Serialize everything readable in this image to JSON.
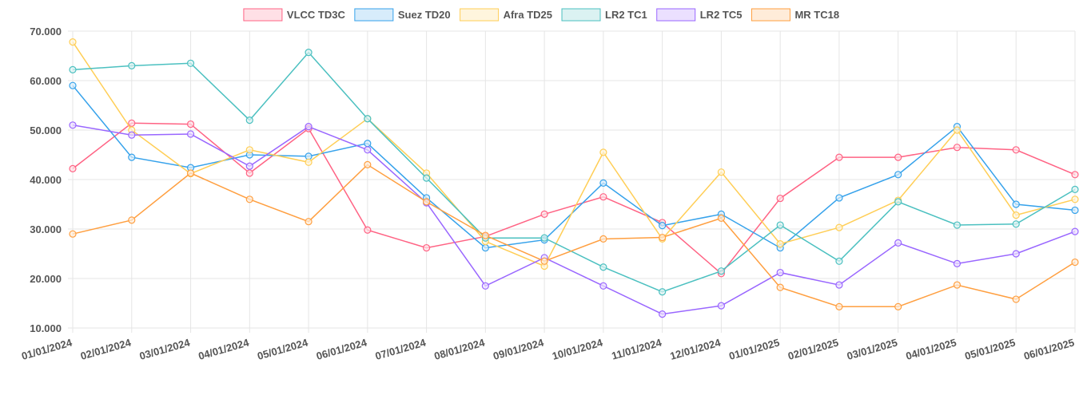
{
  "chart_data": {
    "type": "line",
    "categories": [
      "01/01/2024",
      "02/01/2024",
      "03/01/2024",
      "04/01/2024",
      "05/01/2024",
      "06/01/2024",
      "07/01/2024",
      "08/01/2024",
      "09/01/2024",
      "10/01/2024",
      "11/01/2024",
      "12/01/2024",
      "01/01/2025",
      "02/01/2025",
      "03/01/2025",
      "04/01/2025",
      "05/01/2025",
      "06/01/2025"
    ],
    "ylim": [
      10000,
      70000
    ],
    "yticks": [
      {
        "value": 10000,
        "label": "10.000"
      },
      {
        "value": 20000,
        "label": "20.000"
      },
      {
        "value": 30000,
        "label": "30.000"
      },
      {
        "value": 40000,
        "label": "40.000"
      },
      {
        "value": 50000,
        "label": "50.000"
      },
      {
        "value": 60000,
        "label": "60.000"
      },
      {
        "value": 70000,
        "label": "70.000"
      }
    ],
    "grid": true,
    "legend_position": "top",
    "series": [
      {
        "name": "VLCC TD3C",
        "color": "#ff6384",
        "fill": "#ffe0e6",
        "values": [
          42200,
          51400,
          51200,
          41300,
          50300,
          29800,
          26200,
          28500,
          33000,
          36500,
          31300,
          21000,
          36200,
          44500,
          44500,
          46500,
          46000,
          41000
        ]
      },
      {
        "name": "Suez TD20",
        "color": "#36a2eb",
        "fill": "#d7ecfb",
        "values": [
          59000,
          44500,
          42400,
          45000,
          44700,
          47300,
          36300,
          26200,
          27800,
          39300,
          30700,
          33000,
          26200,
          36300,
          41000,
          50700,
          35000,
          33800
        ]
      },
      {
        "name": "Afra TD25",
        "color": "#ffce56",
        "fill": "#fff5dd",
        "values": [
          67800,
          50000,
          41200,
          46000,
          43500,
          52300,
          41300,
          27500,
          22500,
          45500,
          28000,
          41500,
          27000,
          30300,
          35800,
          50000,
          32800,
          36000
        ]
      },
      {
        "name": "LR2 TC1",
        "color": "#4bc0c0",
        "fill": "#dbf2f2",
        "values": [
          62200,
          63000,
          63500,
          52000,
          65700,
          52300,
          40300,
          28200,
          28200,
          22300,
          17300,
          21500,
          30800,
          23500,
          35500,
          30800,
          31000,
          38000
        ]
      },
      {
        "name": "LR2 TC5",
        "color": "#9966ff",
        "fill": "#ebe0ff",
        "values": [
          51000,
          49000,
          49200,
          42700,
          50700,
          46000,
          35300,
          18500,
          24200,
          18500,
          12800,
          14500,
          21200,
          18700,
          27200,
          23000,
          25000,
          29500
        ]
      },
      {
        "name": "MR TC18",
        "color": "#ff9f40",
        "fill": "#ffecd9",
        "values": [
          29000,
          31800,
          41300,
          36000,
          31500,
          43000,
          35500,
          28700,
          23500,
          28000,
          28300,
          32200,
          18200,
          14300,
          14300,
          18700,
          15800,
          23300
        ]
      }
    ]
  }
}
